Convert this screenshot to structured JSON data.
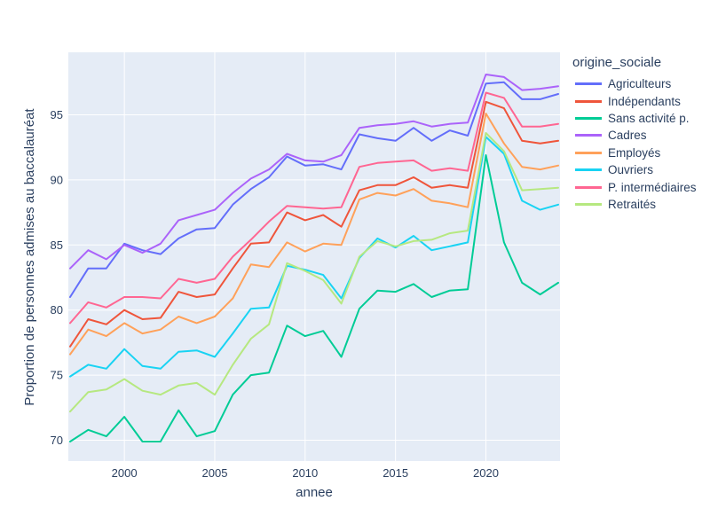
{
  "figure": {
    "background": "#ffffff"
  },
  "chart_data": {
    "type": "line",
    "title": "",
    "xlabel": "annee",
    "ylabel": "Proportion de personnes admises au baccalauréat",
    "legend_title": "origine_sociale",
    "grid": true,
    "legend_position": "right",
    "plot_bgcolor": "#E5ECF6",
    "grid_color": "#FFFFFF",
    "font_color": "#2a3f5f",
    "xlim": [
      1996.9,
      2024.1
    ],
    "ylim": [
      68.4,
      99.8
    ],
    "xticks": [
      "2000",
      "2005",
      "2010",
      "2015",
      "2020"
    ],
    "xtick_values": [
      2000,
      2005,
      2010,
      2015,
      2020
    ],
    "yticks": [
      "70",
      "75",
      "80",
      "85",
      "90",
      "95"
    ],
    "ytick_values": [
      70,
      75,
      80,
      85,
      90,
      95
    ],
    "x": [
      1997,
      1998,
      1999,
      2000,
      2001,
      2002,
      2003,
      2004,
      2005,
      2006,
      2007,
      2008,
      2009,
      2010,
      2011,
      2012,
      2013,
      2014,
      2015,
      2016,
      2017,
      2018,
      2019,
      2020,
      2021,
      2022,
      2023,
      2024
    ],
    "series": [
      {
        "name": "Agriculteurs",
        "color": "#636EFA",
        "values": [
          81.0,
          83.2,
          83.2,
          85.1,
          84.6,
          84.3,
          85.5,
          86.2,
          86.3,
          88.1,
          89.3,
          90.2,
          91.8,
          91.1,
          91.2,
          90.8,
          93.5,
          93.2,
          93.0,
          94.0,
          93.0,
          93.8,
          93.4,
          97.4,
          97.5,
          96.2,
          96.2,
          96.6
        ]
      },
      {
        "name": "Indépendants",
        "color": "#EF553B",
        "values": [
          77.2,
          79.3,
          78.9,
          80.0,
          79.3,
          79.4,
          81.4,
          81.0,
          81.2,
          83.2,
          85.1,
          85.2,
          87.5,
          86.9,
          87.3,
          86.4,
          89.2,
          89.6,
          89.6,
          90.2,
          89.4,
          89.6,
          89.4,
          96.0,
          95.5,
          93.0,
          92.8,
          93.0
        ]
      },
      {
        "name": "Sans activité p.",
        "color": "#00CC96",
        "values": [
          69.9,
          70.8,
          70.3,
          71.8,
          69.9,
          69.9,
          72.3,
          70.3,
          70.7,
          73.5,
          75.0,
          75.2,
          78.8,
          78.0,
          78.4,
          76.4,
          80.1,
          81.5,
          81.4,
          82.0,
          81.0,
          81.5,
          81.6,
          91.9,
          85.2,
          82.1,
          81.2,
          82.1
        ]
      },
      {
        "name": "Cadres",
        "color": "#AB63FA",
        "values": [
          83.2,
          84.6,
          83.9,
          85.0,
          84.4,
          85.1,
          86.9,
          87.3,
          87.7,
          89.0,
          90.1,
          90.8,
          92.0,
          91.5,
          91.4,
          91.9,
          94.0,
          94.2,
          94.3,
          94.5,
          94.1,
          94.3,
          94.4,
          98.1,
          97.9,
          96.9,
          97.0,
          97.2
        ]
      },
      {
        "name": "Employés",
        "color": "#FFA15A",
        "values": [
          76.6,
          78.5,
          78.0,
          79.0,
          78.2,
          78.5,
          79.5,
          79.0,
          79.5,
          80.9,
          83.5,
          83.3,
          85.2,
          84.5,
          85.1,
          85.0,
          88.5,
          89.0,
          88.8,
          89.3,
          88.4,
          88.2,
          87.9,
          95.1,
          92.8,
          91.0,
          90.8,
          91.1
        ]
      },
      {
        "name": "Ouvriers",
        "color": "#19D3F3",
        "values": [
          74.9,
          75.8,
          75.5,
          77.0,
          75.7,
          75.5,
          76.8,
          76.9,
          76.4,
          78.2,
          80.1,
          80.2,
          83.4,
          83.1,
          82.7,
          80.9,
          84.0,
          85.5,
          84.8,
          85.7,
          84.6,
          84.9,
          85.2,
          93.3,
          92.0,
          88.4,
          87.7,
          88.1
        ]
      },
      {
        "name": "P. intermédiaires",
        "color": "#FF6692",
        "values": [
          79.0,
          80.6,
          80.2,
          81.0,
          81.0,
          80.9,
          82.4,
          82.1,
          82.4,
          84.1,
          85.4,
          86.8,
          88.0,
          87.9,
          87.8,
          87.9,
          91.0,
          91.3,
          91.4,
          91.5,
          90.7,
          90.9,
          90.7,
          96.7,
          96.3,
          94.1,
          94.1,
          94.3
        ]
      },
      {
        "name": "Retraités",
        "color": "#B6E880",
        "values": [
          72.2,
          73.7,
          73.9,
          74.7,
          73.8,
          73.5,
          74.2,
          74.4,
          73.5,
          75.8,
          77.8,
          78.9,
          83.6,
          83.0,
          82.3,
          80.5,
          84.1,
          85.3,
          84.9,
          85.3,
          85.4,
          85.9,
          86.1,
          93.6,
          92.2,
          89.2,
          89.3,
          89.4
        ]
      }
    ]
  }
}
